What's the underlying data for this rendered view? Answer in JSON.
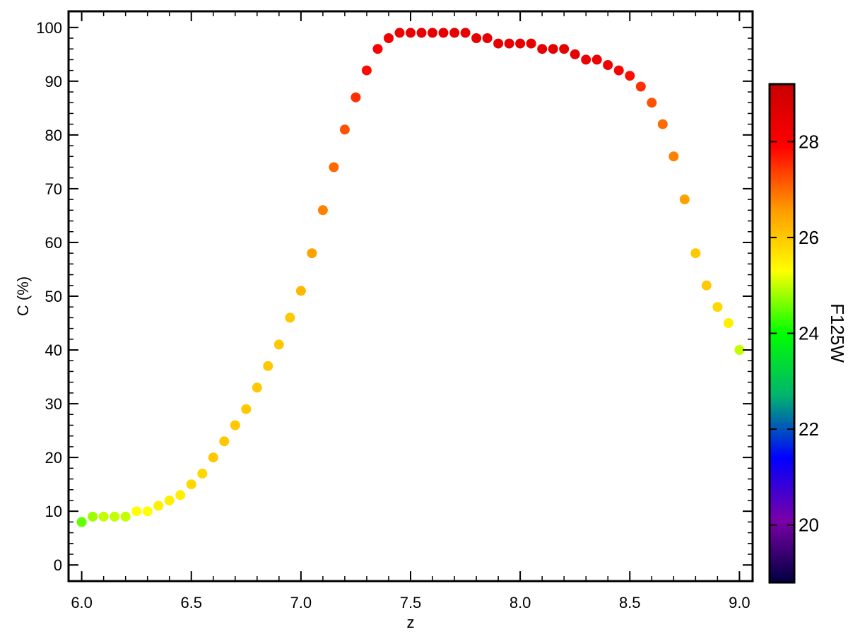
{
  "chart_data": {
    "type": "scatter",
    "title": "",
    "xlabel": "z",
    "ylabel": "C (%)",
    "xlim": [
      5.94,
      9.06
    ],
    "ylim": [
      -3,
      103
    ],
    "xticks": [
      "6.0",
      "6.5",
      "7.0",
      "7.5",
      "8.0",
      "8.5",
      "9.0"
    ],
    "yticks": [
      "0",
      "10",
      "20",
      "30",
      "40",
      "50",
      "60",
      "70",
      "80",
      "90",
      "100"
    ],
    "grid": false,
    "legend": "none",
    "colorbar": {
      "label": "F125W",
      "range": [
        18.8,
        29.2
      ],
      "ticks": [
        "20",
        "22",
        "24",
        "26",
        "28"
      ],
      "colors": [
        "#000040",
        "#7a00a8",
        "#0000ff",
        "#00b46e",
        "#00ff00",
        "#ffff00",
        "#ff9900",
        "#ff0000",
        "#c80000"
      ]
    },
    "series": [
      {
        "x": [
          6.0,
          6.05,
          6.1,
          6.15,
          6.2,
          6.25,
          6.3,
          6.35,
          6.4,
          6.45,
          6.5,
          6.55,
          6.6,
          6.65,
          6.7,
          6.75,
          6.8,
          6.85,
          6.9,
          6.95,
          7.0,
          7.05,
          7.1,
          7.15,
          7.2,
          7.25,
          7.3,
          7.35,
          7.4,
          7.45,
          7.5,
          7.55,
          7.6,
          7.65,
          7.7,
          7.75,
          7.8,
          7.85,
          7.9,
          7.95,
          8.0,
          8.05,
          8.1,
          8.15,
          8.2,
          8.25,
          8.3,
          8.35,
          8.4,
          8.45,
          8.5,
          8.55,
          8.6,
          8.65,
          8.7,
          8.75,
          8.8,
          8.85,
          8.9,
          8.95,
          9.0
        ],
        "y": [
          8,
          9,
          9,
          9,
          9,
          10,
          10,
          11,
          12,
          13,
          15,
          17,
          20,
          23,
          26,
          29,
          33,
          37,
          41,
          46,
          51,
          58,
          66,
          74,
          81,
          87,
          92,
          96,
          98,
          99,
          99,
          99,
          99,
          99,
          99,
          99,
          98,
          98,
          97,
          97,
          97,
          97,
          96,
          96,
          96,
          95,
          94,
          94,
          93,
          92,
          91,
          89,
          86,
          82,
          76,
          68,
          58,
          52,
          48,
          45,
          40
        ],
        "mag": [
          24.5,
          24.8,
          25.0,
          25.0,
          25.0,
          25.3,
          25.3,
          25.5,
          25.5,
          25.5,
          25.8,
          25.8,
          26.0,
          26.0,
          26.0,
          26.0,
          26.0,
          26.0,
          26.0,
          26.0,
          26.2,
          26.5,
          26.8,
          27.0,
          27.2,
          27.5,
          27.8,
          28.0,
          28.2,
          28.3,
          28.4,
          28.5,
          28.5,
          28.5,
          28.5,
          28.5,
          28.5,
          28.5,
          28.5,
          28.5,
          28.5,
          28.5,
          28.5,
          28.5,
          28.5,
          28.5,
          28.3,
          28.3,
          28.2,
          28.0,
          27.8,
          27.5,
          27.2,
          27.0,
          26.8,
          26.5,
          26.0,
          26.0,
          25.8,
          25.5,
          25.0
        ]
      }
    ]
  }
}
